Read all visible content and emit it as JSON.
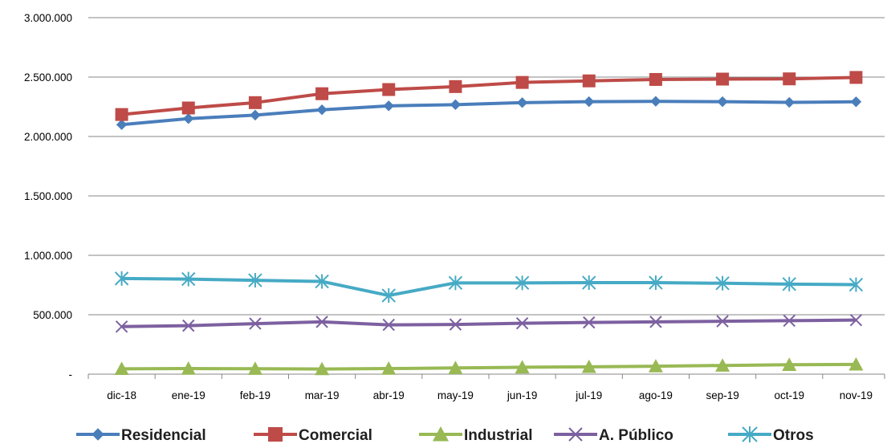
{
  "chart_data": {
    "type": "line",
    "title": "",
    "xlabel": "",
    "ylabel": "",
    "categories": [
      "dic-18",
      "ene-19",
      "feb-19",
      "mar-19",
      "abr-19",
      "may-19",
      "jun-19",
      "jul-19",
      "ago-19",
      "sep-19",
      "oct-19",
      "nov-19"
    ],
    "ylim": [
      0,
      3000000
    ],
    "yticks": [
      0,
      500000,
      1000000,
      1500000,
      2000000,
      2500000,
      3000000
    ],
    "ytick_labels": [
      "-",
      "500.000",
      "1.000.000",
      "1.500.000",
      "2.000.000",
      "2.500.000",
      "3.000.000"
    ],
    "grid": "horizontal",
    "legend_position": "bottom",
    "series": [
      {
        "name": "Residencial",
        "color": "#4a7ebb",
        "marker": "diamond",
        "values": [
          2100000,
          2150000,
          2180000,
          2225000,
          2258000,
          2268000,
          2285000,
          2293000,
          2296000,
          2293000,
          2287000,
          2292000
        ]
      },
      {
        "name": "Comercial",
        "color": "#be4b48",
        "marker": "square",
        "values": [
          2185000,
          2240000,
          2285000,
          2360000,
          2395000,
          2420000,
          2455000,
          2468000,
          2480000,
          2483000,
          2485000,
          2497000
        ]
      },
      {
        "name": "Industrial",
        "color": "#98b954",
        "marker": "triangle",
        "values": [
          45000,
          47000,
          46000,
          43000,
          47000,
          52000,
          58000,
          62000,
          67000,
          73000,
          79000,
          82000
        ]
      },
      {
        "name": "A. Público",
        "color": "#7d60a0",
        "marker": "x",
        "values": [
          400000,
          408000,
          425000,
          440000,
          415000,
          418000,
          428000,
          435000,
          440000,
          445000,
          450000,
          455000
        ]
      },
      {
        "name": "Otros",
        "color": "#46aac5",
        "marker": "asterisk",
        "values": [
          805000,
          800000,
          790000,
          780000,
          662000,
          768000,
          768000,
          770000,
          770000,
          765000,
          758000,
          753000
        ]
      }
    ]
  }
}
